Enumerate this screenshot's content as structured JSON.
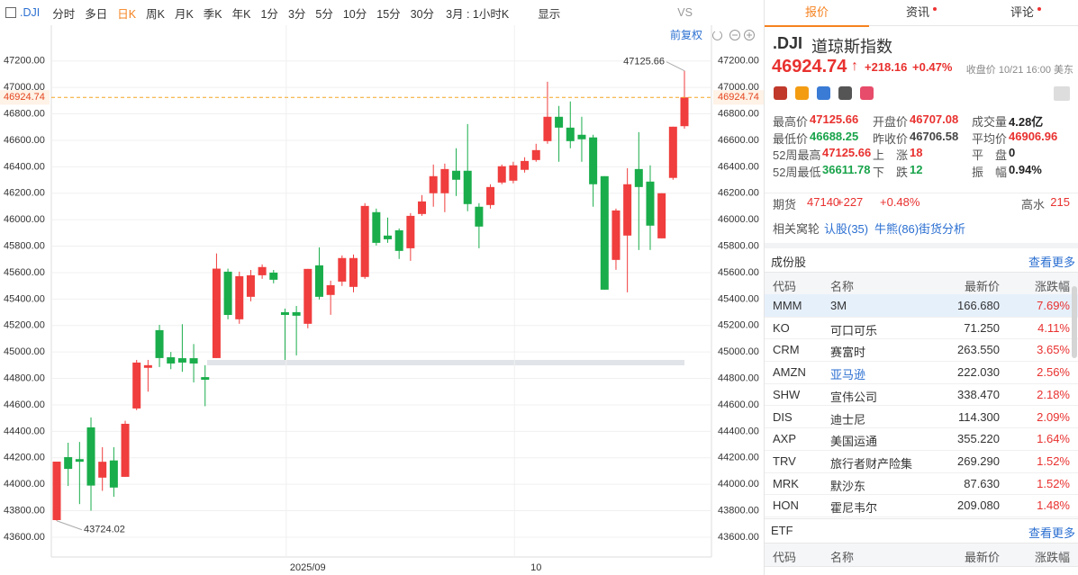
{
  "toolbar": {
    "symbol": ".DJI",
    "periods": [
      "分时",
      "多日",
      "日K",
      "周K",
      "月K",
      "季K",
      "年K",
      "1分",
      "3分",
      "5分",
      "10分",
      "15分",
      "30分"
    ],
    "range": "3月 : 1小时K",
    "display": "显示",
    "compare": "VS",
    "adjust": "前复权"
  },
  "chart_data": {
    "type": "candlestick",
    "up_color": "#f03d3d",
    "down_color": "#1aad4b",
    "last_color": "#f5a623",
    "grid": true,
    "x": [
      null,
      null,
      null,
      null,
      null,
      null,
      null,
      null,
      null,
      null,
      null,
      null,
      null,
      null,
      null,
      null,
      null,
      null,
      null,
      null,
      null,
      null,
      "2025/09",
      null,
      null,
      null,
      null,
      null,
      null,
      null,
      null,
      null,
      null,
      null,
      null,
      null,
      null,
      null,
      null,
      null,
      null,
      null,
      "10",
      null,
      null,
      null,
      null,
      null,
      null,
      null,
      null,
      null,
      null,
      null,
      null,
      null
    ],
    "open": [
      43729,
      44205,
      44190,
      44430,
      44050,
      44180,
      44056,
      44573,
      44880,
      45165,
      44960,
      44953,
      44953,
      44810,
      44954,
      45607,
      45247,
      45417,
      45580,
      45600,
      45301,
      45301,
      45213,
      45655,
      45431,
      45532,
      45492,
      45567,
      46057,
      45880,
      45920,
      45784,
      46043,
      46200,
      46200,
      46370,
      46370,
      46098,
      46111,
      46281,
      46295,
      46377,
      46451,
      46594,
      46778,
      46696,
      46642,
      46622,
      46329,
      45696,
      45880,
      46383,
      46288,
      45859,
      46316,
      46707.08
    ],
    "high": [
      44171,
      44314,
      44320,
      44505,
      44280,
      44280,
      44480,
      44940,
      44940,
      45205,
      45000,
      45210,
      45060,
      44900,
      45745,
      45630,
      45607,
      45620,
      45662,
      45620,
      45328,
      45348,
      45628,
      45791,
      45539,
      45730,
      45737,
      46125,
      46084,
      46016,
      45934,
      46050,
      46186,
      46417,
      46424,
      46540,
      46723,
      46125,
      46268,
      46417,
      46438,
      46472,
      46574,
      47043,
      46860,
      46894,
      46778,
      46642,
      46329,
      46084,
      46390,
      46662,
      46411,
      46200,
      46703,
      47125.66
    ],
    "low": [
      43724.02,
      43987,
      43850,
      43800,
      43950,
      43905,
      44056,
      44560,
      44700,
      44886,
      44870,
      44850,
      44770,
      44590,
      44954,
      45247,
      45213,
      45383,
      45553,
      45519,
      44940,
      44974,
      45179,
      45397,
      45281,
      45499,
      45451,
      45553,
      45805,
      45825,
      45703,
      45689,
      46029,
      46098,
      46057,
      46179,
      46064,
      45784,
      46084,
      46268,
      46275,
      46356,
      46438,
      46574,
      46438,
      46540,
      46438,
      46098,
      45471,
      45621,
      45451,
      45771,
      45771,
      45859,
      46302,
      46688.25
    ],
    "close": [
      44171,
      44116,
      44170,
      43990,
      44170,
      43975,
      44457,
      44920,
      44900,
      44954,
      44913,
      44920,
      44913,
      44790,
      45630,
      45280,
      45573,
      45580,
      45642,
      45546,
      45280,
      45274,
      45628,
      45417,
      45505,
      45710,
      45710,
      46104,
      45825,
      45852,
      45764,
      46029,
      46138,
      46329,
      46383,
      46302,
      46118,
      45948,
      46247,
      46404,
      46411,
      46444,
      46526,
      46778,
      46696,
      46594,
      46608,
      46268,
      45471,
      46070,
      46268,
      46247,
      45955,
      46200,
      46703,
      46924.74
    ],
    "ylim": [
      43450,
      47450
    ],
    "yticks": [
      {
        "value": 43600,
        "label": "43600.00"
      },
      {
        "value": 43800,
        "label": "43800.00"
      },
      {
        "value": 44000,
        "label": "44000.00"
      },
      {
        "value": 44200,
        "label": "44200.00"
      },
      {
        "value": 44400,
        "label": "44400.00"
      },
      {
        "value": 44600,
        "label": "44600.00"
      },
      {
        "value": 44800,
        "label": "44800.00"
      },
      {
        "value": 45000,
        "label": "45000.00"
      },
      {
        "value": 45200,
        "label": "45200.00"
      },
      {
        "value": 45400,
        "label": "45400.00"
      },
      {
        "value": 45600,
        "label": "45600.00"
      },
      {
        "value": 45800,
        "label": "45800.00"
      },
      {
        "value": 46000,
        "label": "46000.00"
      },
      {
        "value": 46200,
        "label": "46200.00"
      },
      {
        "value": 46400,
        "label": "46400.00"
      },
      {
        "value": 46600,
        "label": "46600.00"
      },
      {
        "value": 46800,
        "label": "46800.00"
      },
      {
        "value": 47000,
        "label": "47000.00"
      },
      {
        "value": 47200,
        "label": "47200.00"
      }
    ]
  },
  "panel": {
    "tabs": [
      "报价",
      "资讯",
      "评论"
    ],
    "quote": {
      "symbol": ".DJI",
      "name": "道琼斯指数",
      "price": "46924.74",
      "change": "+218.16",
      "pct": "+0.47%",
      "status": "收盘价 10/21 16:00 美东"
    },
    "stats": [
      [
        {
          "label": "最高价",
          "value": "47125.66",
          "color": "#e8312f"
        },
        {
          "label": "开盘价",
          "value": "46707.08",
          "color": "#e8312f"
        },
        {
          "label": "成交量",
          "value": "4.28亿",
          "color": "#222"
        }
      ],
      [
        {
          "label": "最低价",
          "value": "46688.25",
          "color": "#18a34a"
        },
        {
          "label": "昨收价",
          "value": "46706.58",
          "color": "#444"
        },
        {
          "label": "平均价",
          "value": "46906.96",
          "color": "#e8312f"
        }
      ],
      [
        {
          "label": "52周最高",
          "value": "47125.66",
          "color": "#e8312f"
        },
        {
          "label": "上　涨",
          "value": "18",
          "color": "#e8312f"
        },
        {
          "label": "平　盘",
          "value": "0",
          "color": "#222"
        }
      ],
      [
        {
          "label": "52周最低",
          "value": "36611.78",
          "color": "#18a34a"
        },
        {
          "label": "下　跌",
          "value": "12",
          "color": "#18a34a"
        },
        {
          "label": "振　幅",
          "value": "0.94%",
          "color": "#222"
        }
      ]
    ],
    "futures": {
      "label": "期货",
      "price": "47140",
      "change": "+227",
      "pct": "+0.48%",
      "basis_label": "高水",
      "basis": "215"
    },
    "related": {
      "label": "相关窝轮",
      "links": [
        "认股(35)",
        "牛熊(86)",
        "街货分析"
      ]
    },
    "constituents": {
      "title": "成份股",
      "more": "查看更多",
      "header": [
        "代码",
        "名称",
        "最新价",
        "涨跌幅"
      ],
      "rows": [
        [
          "MMM",
          "3M",
          "166.680",
          "7.69%"
        ],
        [
          "KO",
          "可口可乐",
          "71.250",
          "4.11%"
        ],
        [
          "CRM",
          "赛富时",
          "263.550",
          "3.65%"
        ],
        [
          "AMZN",
          "亚马逊",
          "222.030",
          "2.56%"
        ],
        [
          "SHW",
          "宣伟公司",
          "338.470",
          "2.18%"
        ],
        [
          "DIS",
          "迪士尼",
          "114.300",
          "2.09%"
        ],
        [
          "AXP",
          "美国运通",
          "355.220",
          "1.64%"
        ],
        [
          "TRV",
          "旅行者财产险集",
          "269.290",
          "1.52%"
        ],
        [
          "MRK",
          "默沙东",
          "87.630",
          "1.52%"
        ],
        [
          "HON",
          "霍尼韦尔",
          "209.080",
          "1.48%"
        ]
      ]
    },
    "etf": {
      "title": "ETF",
      "more": "查看更多",
      "header": [
        "代码",
        "名称",
        "最新价",
        "涨跌幅"
      ]
    }
  }
}
